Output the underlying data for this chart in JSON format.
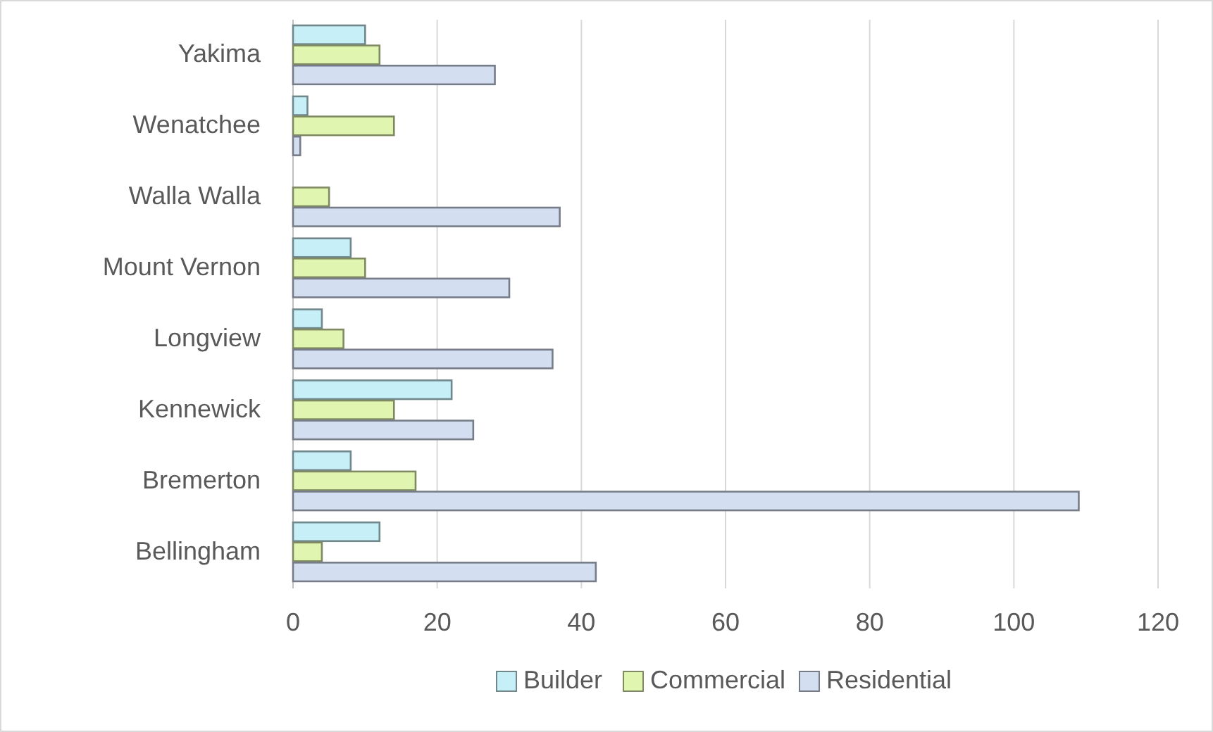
{
  "chart_data": {
    "type": "bar",
    "orientation": "horizontal",
    "categories": [
      "Yakima",
      "Wenatchee",
      "Walla Walla",
      "Mount Vernon",
      "Longview",
      "Kennewick",
      "Bremerton",
      "Bellingham"
    ],
    "series": [
      {
        "name": "Builder",
        "color": "#c6eff7",
        "values": [
          10,
          2,
          null,
          8,
          4,
          22,
          8,
          12
        ]
      },
      {
        "name": "Commercial",
        "color": "#e0f5b0",
        "values": [
          12,
          14,
          5,
          10,
          7,
          14,
          17,
          4
        ]
      },
      {
        "name": "Residential",
        "color": "#d3def1",
        "values": [
          28,
          1,
          37,
          30,
          36,
          25,
          109,
          42
        ]
      }
    ],
    "xlim": [
      0,
      120
    ],
    "xticks": [
      0,
      20,
      40,
      60,
      80,
      100,
      120
    ],
    "grid": "x",
    "legend": "bottom"
  }
}
